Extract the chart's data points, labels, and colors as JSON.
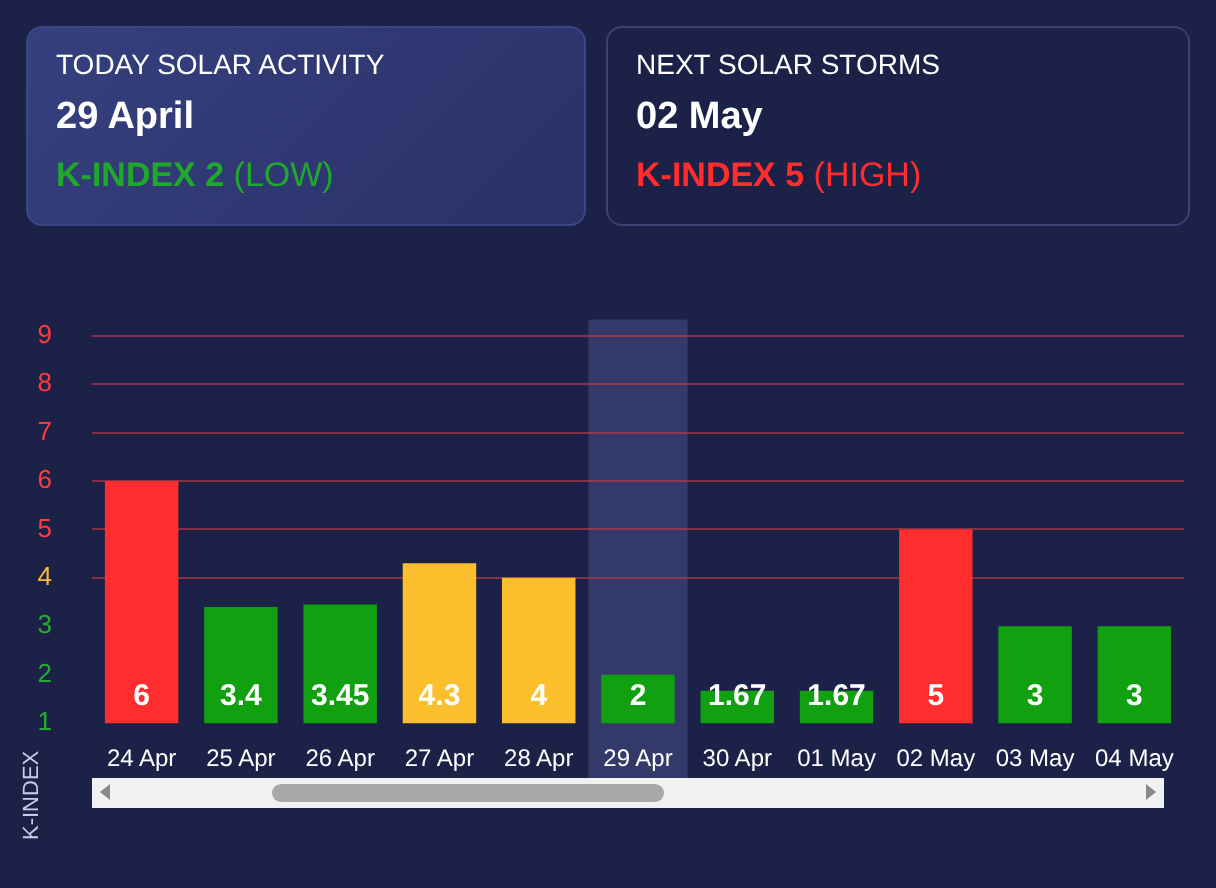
{
  "chart_data": [
    {
      "type": "other",
      "annotations": [
        "TODAY SOLAR ACTIVITY",
        "29 April",
        "K-INDEX 2",
        "(LOW)"
      ],
      "color": "#1fa82a"
    },
    {
      "type": "other",
      "annotations": [
        "NEXT SOLAR STORMS",
        "02 May",
        "K-INDEX 5",
        "(HIGH)"
      ],
      "color": "#ff2d2d"
    },
    {
      "type": "bar",
      "ylabel": "K-INDEX",
      "categories": [
        "24 Apr",
        "25 Apr",
        "26 Apr",
        "27 Apr",
        "28 Apr",
        "29 Apr",
        "30 Apr",
        "01 May",
        "02 May",
        "03 May",
        "04 May"
      ],
      "values": [
        6,
        3.4,
        3.45,
        4.3,
        4,
        2,
        1.67,
        1.67,
        5,
        3,
        3
      ],
      "colors": [
        "#ff2d2d",
        "#10a010",
        "#10a010",
        "#fbbf2d",
        "#fbbf2d",
        "#10a010",
        "#10a010",
        "#10a010",
        "#ff2d2d",
        "#10a010",
        "#10a010"
      ],
      "ylim": [
        1,
        9
      ],
      "yticks": [
        1,
        2,
        3,
        4,
        5,
        6,
        7,
        8,
        9
      ],
      "grid": "y",
      "legend": false,
      "data_labels": true,
      "bands": [
        {
          "axis": "x",
          "from": "29 Apr",
          "to": "29 Apr",
          "color": "#3a4070"
        }
      ]
    }
  ]
}
